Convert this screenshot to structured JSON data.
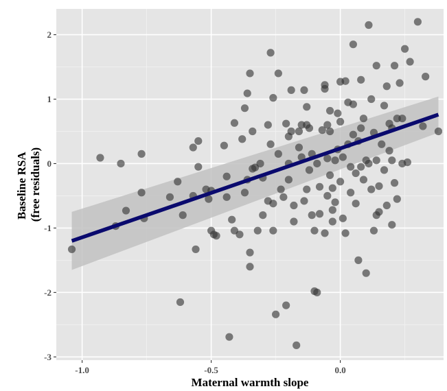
{
  "chart_data": {
    "type": "scatter",
    "xlabel": "Maternal warmth slope",
    "ylabel_lines": [
      "Baseline RSA",
      "(free residuals)"
    ],
    "xlim": [
      -1.1,
      0.4
    ],
    "ylim": [
      -3.05,
      2.4
    ],
    "x_ticks": [
      -1.0,
      -0.5,
      0.0
    ],
    "x_tick_labels": [
      "-1.0",
      "-0.5",
      "0.0"
    ],
    "y_ticks": [
      2,
      1,
      0,
      -1,
      -2,
      -3
    ],
    "y_tick_labels": [
      "2",
      "1",
      "0",
      "-1",
      "-2",
      "-3"
    ],
    "grid": true,
    "legend": "none",
    "colors": {
      "panel_background": "#e5e5e5",
      "grid_major": "#ffffff",
      "points": "#333333",
      "fit_line": "#0a0a6e",
      "confidence_band": "#c2c2c2"
    },
    "fit": {
      "x": [
        -1.04,
        0.38
      ],
      "y": [
        -1.2,
        0.76
      ],
      "ci_lower": [
        -1.65,
        0.48
      ],
      "ci_upper": [
        -0.75,
        1.04
      ]
    },
    "points": [
      {
        "x": -1.04,
        "y": -1.33
      },
      {
        "x": -0.93,
        "y": 0.09
      },
      {
        "x": -0.85,
        "y": 0.0
      },
      {
        "x": -0.83,
        "y": -0.73
      },
      {
        "x": -0.87,
        "y": -0.97
      },
      {
        "x": -0.77,
        "y": 0.15
      },
      {
        "x": -0.77,
        "y": -0.45
      },
      {
        "x": -0.76,
        "y": -0.85
      },
      {
        "x": -0.66,
        "y": -0.52
      },
      {
        "x": -0.63,
        "y": -0.28
      },
      {
        "x": -0.62,
        "y": -2.15
      },
      {
        "x": -0.61,
        "y": -0.8
      },
      {
        "x": -0.57,
        "y": 0.25
      },
      {
        "x": -0.55,
        "y": 0.35
      },
      {
        "x": -0.57,
        "y": -0.5
      },
      {
        "x": -0.56,
        "y": -1.33
      },
      {
        "x": -0.52,
        "y": -0.4
      },
      {
        "x": -0.51,
        "y": -0.55
      },
      {
        "x": -0.5,
        "y": -0.42
      },
      {
        "x": -0.5,
        "y": -1.04
      },
      {
        "x": -0.49,
        "y": -1.1
      },
      {
        "x": -0.48,
        "y": -1.12
      },
      {
        "x": -0.45,
        "y": 0.28
      },
      {
        "x": -0.44,
        "y": -0.52
      },
      {
        "x": -0.42,
        "y": -0.87
      },
      {
        "x": -0.41,
        "y": 0.63
      },
      {
        "x": -0.41,
        "y": -1.04
      },
      {
        "x": -0.43,
        "y": -2.69
      },
      {
        "x": -0.39,
        "y": -1.1
      },
      {
        "x": -0.38,
        "y": 0.38
      },
      {
        "x": -0.37,
        "y": 0.86
      },
      {
        "x": -0.36,
        "y": 1.09
      },
      {
        "x": -0.35,
        "y": 1.4
      },
      {
        "x": -0.36,
        "y": -0.25
      },
      {
        "x": -0.35,
        "y": -1.38
      },
      {
        "x": -0.35,
        "y": -1.6
      },
      {
        "x": -0.34,
        "y": 0.5
      },
      {
        "x": -0.34,
        "y": -0.08
      },
      {
        "x": -0.33,
        "y": -0.06
      },
      {
        "x": -0.32,
        "y": -1.04
      },
      {
        "x": -0.31,
        "y": 0.0
      },
      {
        "x": -0.3,
        "y": -0.22
      },
      {
        "x": -0.3,
        "y": -0.8
      },
      {
        "x": -0.28,
        "y": 0.6
      },
      {
        "x": -0.27,
        "y": 1.72
      },
      {
        "x": -0.26,
        "y": 1.02
      },
      {
        "x": -0.26,
        "y": -0.62
      },
      {
        "x": -0.26,
        "y": -1.04
      },
      {
        "x": -0.25,
        "y": -2.34
      },
      {
        "x": -0.24,
        "y": 1.4
      },
      {
        "x": -0.23,
        "y": -0.4
      },
      {
        "x": -0.22,
        "y": -0.52
      },
      {
        "x": -0.21,
        "y": -2.2
      },
      {
        "x": -0.2,
        "y": 0.0
      },
      {
        "x": -0.2,
        "y": -0.25
      },
      {
        "x": -0.19,
        "y": 0.5
      },
      {
        "x": -0.19,
        "y": 1.14
      },
      {
        "x": -0.18,
        "y": -0.65
      },
      {
        "x": -0.18,
        "y": -0.9
      },
      {
        "x": -0.17,
        "y": -2.82
      },
      {
        "x": -0.16,
        "y": 0.5
      },
      {
        "x": -0.16,
        "y": 0.25
      },
      {
        "x": -0.15,
        "y": 0.6
      },
      {
        "x": -0.15,
        "y": 0.1
      },
      {
        "x": -0.14,
        "y": 1.14
      },
      {
        "x": -0.14,
        "y": -0.58
      },
      {
        "x": -0.13,
        "y": -0.4
      },
      {
        "x": -0.13,
        "y": 0.6
      },
      {
        "x": -0.12,
        "y": 0.55
      },
      {
        "x": -0.12,
        "y": -0.1
      },
      {
        "x": -0.11,
        "y": 0.15
      },
      {
        "x": -0.11,
        "y": -0.8
      },
      {
        "x": -0.1,
        "y": -1.04
      },
      {
        "x": -0.1,
        "y": -1.98
      },
      {
        "x": -0.09,
        "y": -2.0
      },
      {
        "x": -0.09,
        "y": 0.0
      },
      {
        "x": -0.08,
        "y": -0.36
      },
      {
        "x": -0.08,
        "y": -0.78
      },
      {
        "x": -0.07,
        "y": 0.52
      },
      {
        "x": -0.06,
        "y": 1.16
      },
      {
        "x": -0.06,
        "y": -1.08
      },
      {
        "x": -0.05,
        "y": 0.6
      },
      {
        "x": -0.05,
        "y": 0.08
      },
      {
        "x": -0.05,
        "y": -0.5
      },
      {
        "x": -0.04,
        "y": -0.18
      },
      {
        "x": -0.04,
        "y": 0.5
      },
      {
        "x": -0.03,
        "y": -0.38
      },
      {
        "x": -0.03,
        "y": -0.9
      },
      {
        "x": -0.02,
        "y": 0.05
      },
      {
        "x": -0.02,
        "y": -0.6
      },
      {
        "x": -0.01,
        "y": 0.22
      },
      {
        "x": 0.0,
        "y": -0.28
      },
      {
        "x": 0.0,
        "y": 0.65
      },
      {
        "x": 0.01,
        "y": 0.1
      },
      {
        "x": 0.01,
        "y": -0.85
      },
      {
        "x": 0.02,
        "y": -1.08
      },
      {
        "x": 0.02,
        "y": 1.28
      },
      {
        "x": 0.03,
        "y": 0.95
      },
      {
        "x": 0.03,
        "y": 0.3
      },
      {
        "x": 0.04,
        "y": -0.05
      },
      {
        "x": 0.04,
        "y": -0.45
      },
      {
        "x": 0.05,
        "y": 1.85
      },
      {
        "x": 0.05,
        "y": 0.45
      },
      {
        "x": 0.06,
        "y": -0.15
      },
      {
        "x": 0.06,
        "y": -0.62
      },
      {
        "x": 0.07,
        "y": 0.35
      },
      {
        "x": 0.07,
        "y": -1.5
      },
      {
        "x": 0.08,
        "y": 1.3
      },
      {
        "x": 0.08,
        "y": 0.55
      },
      {
        "x": 0.09,
        "y": 0.7
      },
      {
        "x": 0.09,
        "y": -0.25
      },
      {
        "x": 0.1,
        "y": -1.7
      },
      {
        "x": 0.1,
        "y": 0.05
      },
      {
        "x": 0.11,
        "y": 2.15
      },
      {
        "x": 0.11,
        "y": 0.0
      },
      {
        "x": 0.12,
        "y": 1.0
      },
      {
        "x": 0.12,
        "y": -0.4
      },
      {
        "x": 0.13,
        "y": -1.04
      },
      {
        "x": 0.13,
        "y": 0.48
      },
      {
        "x": 0.14,
        "y": 1.52
      },
      {
        "x": 0.14,
        "y": 0.05
      },
      {
        "x": 0.15,
        "y": -0.75
      },
      {
        "x": 0.15,
        "y": -0.35
      },
      {
        "x": 0.16,
        "y": 0.3
      },
      {
        "x": 0.17,
        "y": 0.9
      },
      {
        "x": 0.17,
        "y": -0.1
      },
      {
        "x": 0.18,
        "y": 1.2
      },
      {
        "x": 0.18,
        "y": -0.65
      },
      {
        "x": 0.19,
        "y": 0.62
      },
      {
        "x": 0.19,
        "y": 0.2
      },
      {
        "x": 0.2,
        "y": 0.05
      },
      {
        "x": 0.2,
        "y": -0.95
      },
      {
        "x": 0.21,
        "y": 1.52
      },
      {
        "x": 0.21,
        "y": -0.3
      },
      {
        "x": 0.22,
        "y": 0.7
      },
      {
        "x": 0.22,
        "y": -0.55
      },
      {
        "x": 0.23,
        "y": 1.25
      },
      {
        "x": 0.24,
        "y": 0.7
      },
      {
        "x": 0.24,
        "y": 0.0
      },
      {
        "x": 0.25,
        "y": 1.78
      },
      {
        "x": 0.26,
        "y": 0.02
      },
      {
        "x": 0.27,
        "y": 1.58
      },
      {
        "x": 0.3,
        "y": 2.2
      },
      {
        "x": 0.32,
        "y": 0.58
      },
      {
        "x": 0.33,
        "y": 1.35
      },
      {
        "x": 0.38,
        "y": 0.5
      },
      {
        "x": -0.55,
        "y": -0.05
      },
      {
        "x": -0.24,
        "y": 0.15
      },
      {
        "x": -0.04,
        "y": 0.82
      },
      {
        "x": 0.0,
        "y": 1.27
      },
      {
        "x": -0.01,
        "y": 0.78
      },
      {
        "x": -0.21,
        "y": 0.62
      },
      {
        "x": -0.2,
        "y": 0.42
      },
      {
        "x": -0.44,
        "y": -0.2
      },
      {
        "x": -0.27,
        "y": 0.3
      },
      {
        "x": -0.13,
        "y": 0.88
      },
      {
        "x": -0.28,
        "y": -0.58
      },
      {
        "x": -0.03,
        "y": -0.72
      },
      {
        "x": -0.37,
        "y": -0.45
      },
      {
        "x": 0.14,
        "y": -0.8
      },
      {
        "x": 0.2,
        "y": 0.55
      },
      {
        "x": 0.05,
        "y": 0.92
      },
      {
        "x": -0.06,
        "y": 1.22
      },
      {
        "x": 0.08,
        "y": -0.05
      }
    ]
  }
}
